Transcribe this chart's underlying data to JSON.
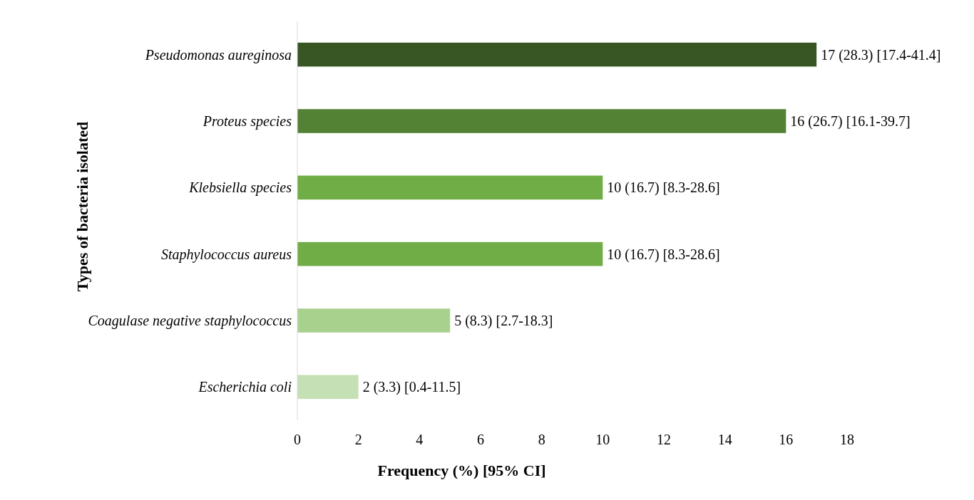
{
  "chart_data": {
    "type": "bar",
    "orientation": "horizontal",
    "xlabel": "Frequency (%) [95% CI]",
    "ylabel": "Types of bacteria isolated",
    "categories": [
      "Pseudomonas aureginosa",
      "Proteus species",
      "Klebsiella species",
      "Staphylococcus aureus",
      "Coagulase negative staphylococcus",
      "Escherichia coli"
    ],
    "values": [
      17,
      16,
      10,
      10,
      5,
      2
    ],
    "colors": [
      "#375623",
      "#548235",
      "#70ad47",
      "#70ad47",
      "#a9d18e",
      "#c5e0b4"
    ],
    "value_labels": [
      "17 (28.3) [17.4-41.4]",
      "16 (26.7) [16.1-39.7]",
      "10 (16.7) [8.3-28.6]",
      "10 (16.7) [8.3-28.6]",
      "5 (8.3) [2.7-18.3]",
      "2 (3.3) [0.4-11.5]"
    ],
    "xlim": [
      0,
      18
    ],
    "xticks": [
      0,
      2,
      4,
      6,
      8,
      10,
      12,
      14,
      16,
      18
    ],
    "grid": false
  }
}
